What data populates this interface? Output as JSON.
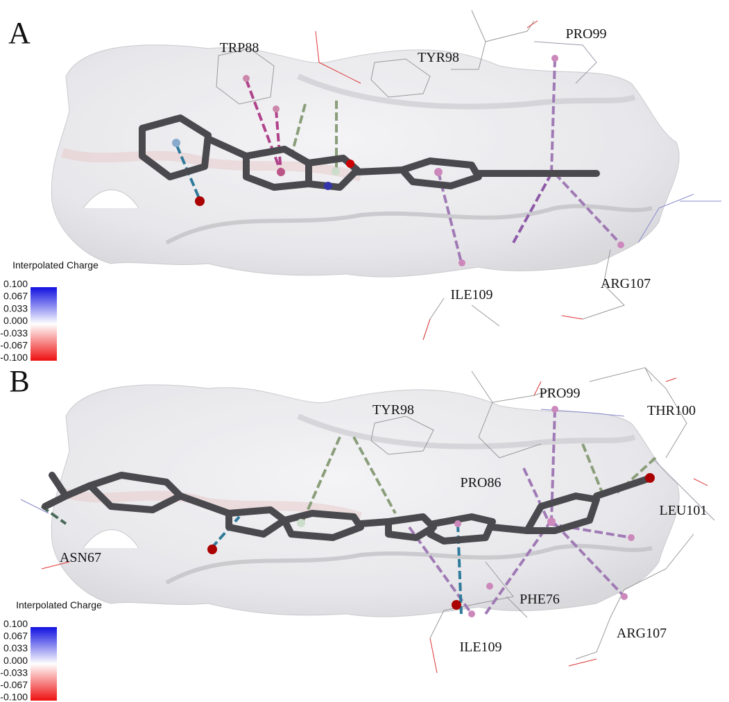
{
  "panels": [
    {
      "label": "A",
      "residues": [
        "TRP88",
        "TYR98",
        "PRO99",
        "ILE109",
        "ARG107"
      ],
      "legend": {
        "title": "Interpolated Charge",
        "ticks": [
          "0.100",
          "0.067",
          "0.033",
          "0.000",
          "-0.033",
          "-0.067",
          "-0.100"
        ]
      }
    },
    {
      "label": "B",
      "residues": [
        "TYR98",
        "PRO99",
        "THR100",
        "PRO86",
        "LEU101",
        "ASN67",
        "PHE76",
        "ARG107",
        "ILE109"
      ],
      "legend": {
        "title": "Interpolated Charge",
        "ticks": [
          "0.100",
          "0.067",
          "0.033",
          "0.000",
          "-0.033",
          "-0.067",
          "-0.100"
        ]
      }
    }
  ]
}
